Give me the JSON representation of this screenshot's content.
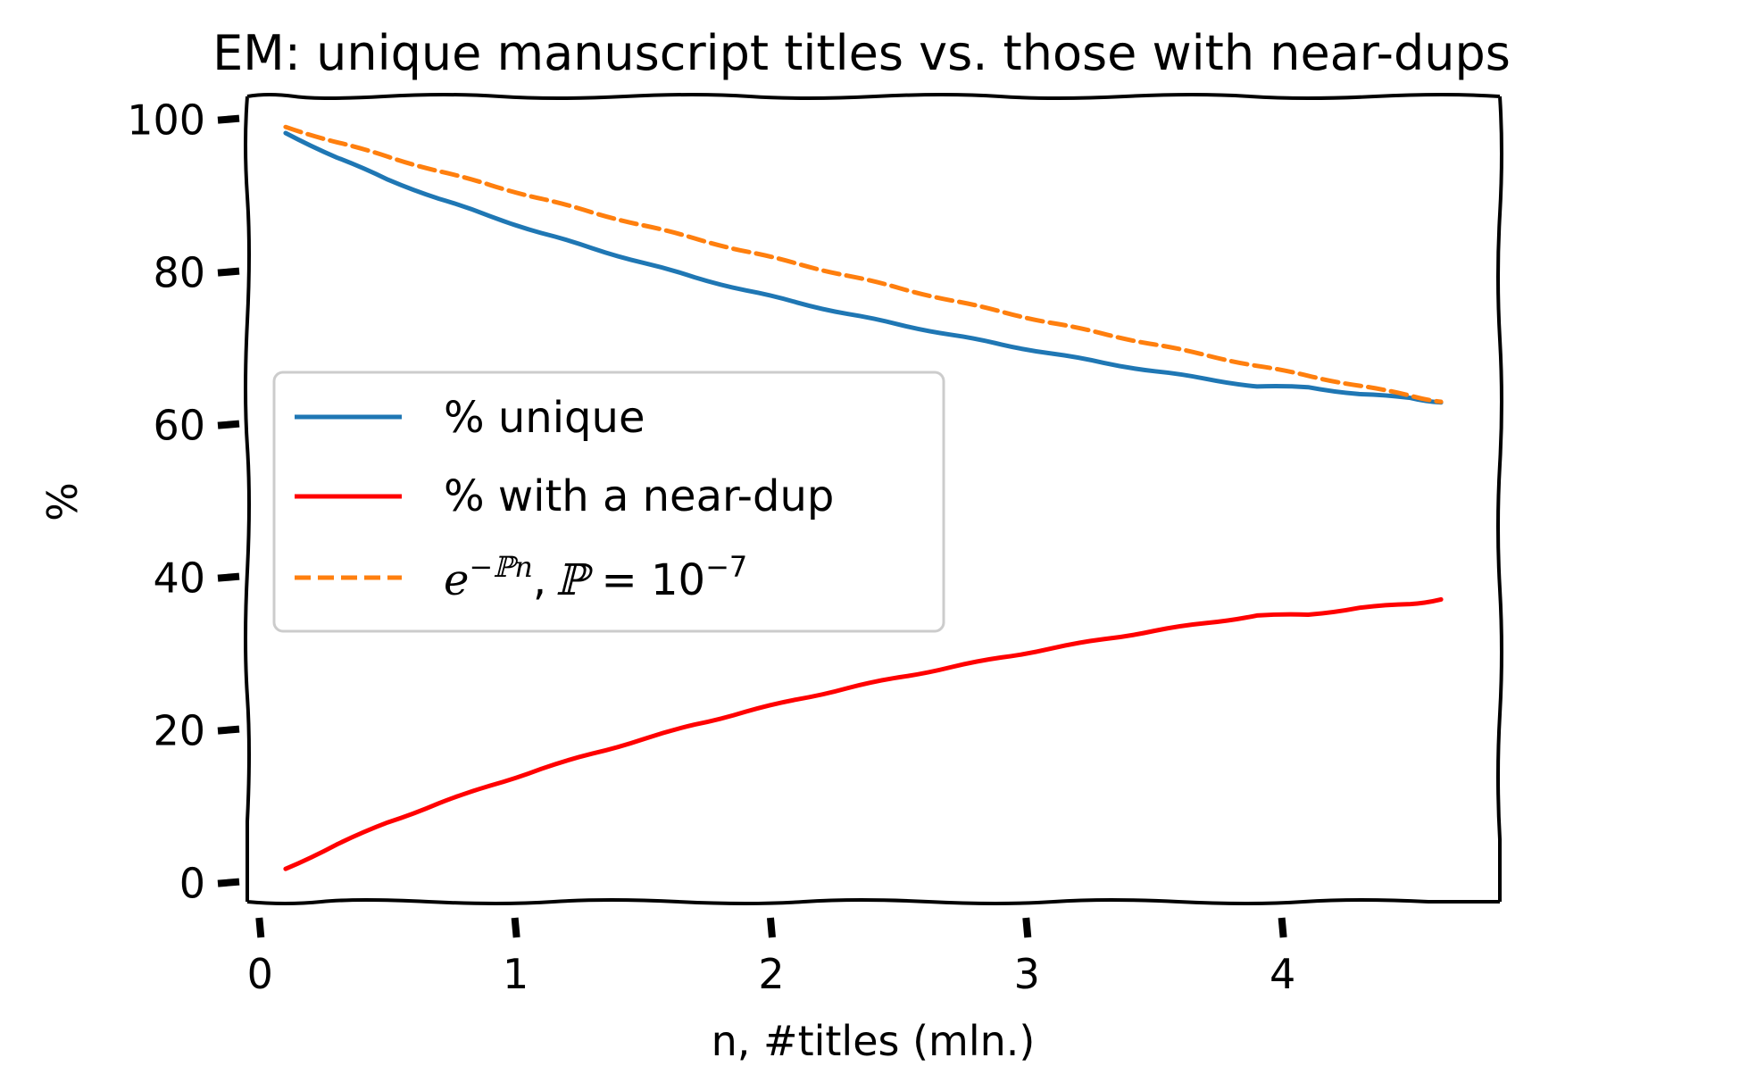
{
  "chart_data": {
    "type": "line",
    "title": "EM: unique manuscript titles vs. those with near-dups",
    "xlabel": "n, #titles (mln.)",
    "ylabel": "%",
    "xlim": [
      -0.05,
      4.85
    ],
    "ylim": [
      -2.5,
      103
    ],
    "xticks": [
      "0",
      "1",
      "2",
      "3",
      "4"
    ],
    "yticks": [
      "0",
      "20",
      "40",
      "60",
      "80",
      "100"
    ],
    "grid": false,
    "legend_position": "center-left",
    "x": [
      0.1,
      0.3,
      0.5,
      0.7,
      0.9,
      1.1,
      1.3,
      1.5,
      1.7,
      1.9,
      2.1,
      2.3,
      2.5,
      2.7,
      2.9,
      3.1,
      3.3,
      3.5,
      3.7,
      3.9,
      4.1,
      4.3,
      4.5,
      4.62
    ],
    "series": [
      {
        "name": "% unique",
        "color": "#1f77b4",
        "style": "solid",
        "values": [
          98.2,
          95.0,
          92.1,
          89.6,
          87.3,
          85.1,
          83.1,
          81.2,
          79.3,
          77.6,
          76.0,
          74.5,
          73.1,
          71.8,
          70.5,
          69.3,
          68.1,
          67.0,
          66.0,
          65.0,
          64.9,
          64.0,
          63.5,
          62.9
        ]
      },
      {
        "name": "% with a near-dup",
        "color": "#ff0000",
        "style": "solid",
        "values": [
          1.8,
          5.0,
          7.9,
          10.4,
          12.7,
          14.9,
          16.9,
          18.8,
          20.7,
          22.4,
          24.0,
          25.5,
          26.9,
          28.2,
          29.5,
          30.7,
          31.9,
          33.0,
          34.0,
          35.0,
          35.1,
          36.0,
          36.5,
          37.1
        ]
      },
      {
        "name": "e^{-pn}, p = 10^{-7}",
        "color": "#ff7f0e",
        "style": "dashed",
        "values": [
          99.0,
          97.0,
          95.1,
          93.2,
          91.4,
          89.6,
          87.8,
          86.1,
          84.4,
          82.7,
          81.1,
          79.5,
          77.9,
          76.3,
          74.8,
          73.3,
          71.9,
          70.5,
          69.1,
          67.7,
          66.4,
          65.1,
          63.8,
          63.0
        ]
      }
    ]
  },
  "legend": {
    "unique_label": "% unique",
    "neardup_label": "% with a near-dup",
    "fit_e": "e",
    "fit_exp": "−ℙn",
    "fit_sep": ",",
    "fit_p": "ℙ",
    "fit_eq": " = 10",
    "fit_pow": "−7"
  }
}
